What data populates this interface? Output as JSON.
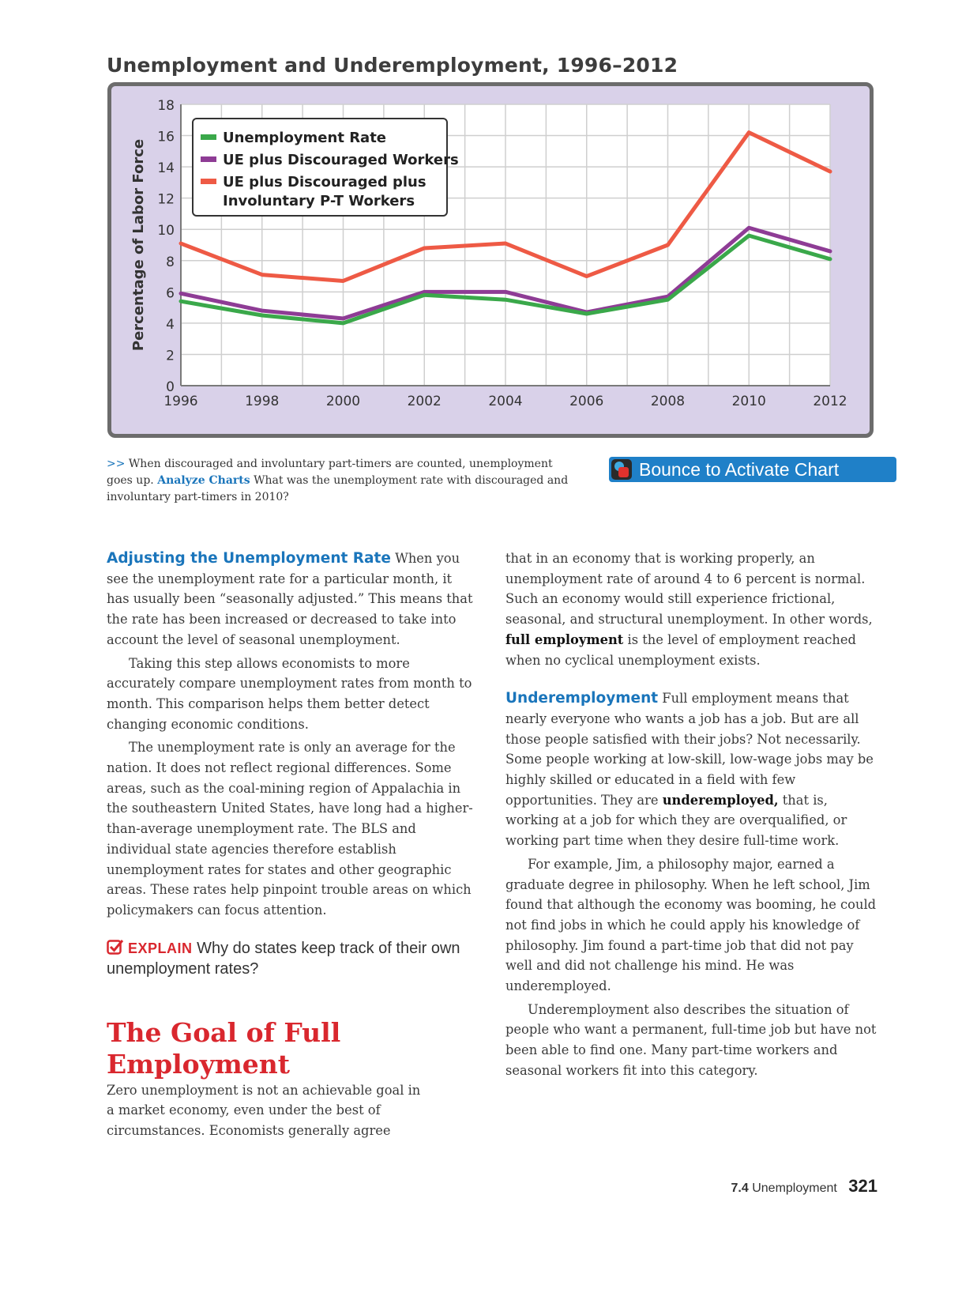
{
  "chart_data": {
    "type": "line",
    "title": "Unemployment and Underemployment, 1996–2012",
    "ylabel": "Percentage of Labor Force",
    "xlabel": "",
    "x": [
      1996,
      1998,
      2000,
      2002,
      2004,
      2006,
      2008,
      2010,
      2012
    ],
    "x_ticks": [
      "1996",
      "1998",
      "2000",
      "2002",
      "2004",
      "2006",
      "2008",
      "2010",
      "2012"
    ],
    "y_ticks": [
      "0",
      "2",
      "4",
      "6",
      "8",
      "10",
      "12",
      "14",
      "16",
      "18"
    ],
    "ylim": [
      0,
      18
    ],
    "xlim": [
      1996,
      2012
    ],
    "grid": true,
    "legend_position": "top-left",
    "series": [
      {
        "name": "Unemployment Rate",
        "color": "#3aa84a",
        "values": [
          5.4,
          4.5,
          4.0,
          5.8,
          5.5,
          4.6,
          5.5,
          9.6,
          8.1
        ]
      },
      {
        "name": "UE plus Discouraged Workers",
        "color": "#8e3c95",
        "values": [
          5.9,
          4.8,
          4.3,
          6.0,
          6.0,
          4.7,
          5.7,
          10.1,
          8.6
        ]
      },
      {
        "name": "UE plus Discouraged plus Involuntary P-T Workers",
        "legend_lines": [
          "UE plus Discouraged plus",
          "Involuntary P-T Workers"
        ],
        "color": "#ee5a45",
        "values": [
          9.1,
          7.1,
          6.7,
          8.8,
          9.1,
          7.0,
          9.0,
          16.2,
          13.7
        ]
      }
    ]
  },
  "caption": {
    "arrows": ">>",
    "text": " When discouraged and involuntary part-timers are counted, unemployment goes up. ",
    "analyze": "Analyze Charts",
    "question": "  What was the unemployment rate with discouraged and involuntary part-timers in 2010?"
  },
  "bounce_button": {
    "label": "Bounce to Activate Chart",
    "color": "#1f80c8"
  },
  "left_column": {
    "s1_head": "Adjusting the Unemployment Rate",
    "s1_text": " When you see the unemployment rate for a particular month, it has usually been “seasonally adjusted.” This means that the rate has been increased or decreased to take into account the level of seasonal unemployment.",
    "p2": "Taking this step allows economists to more accurately compare unemployment rates from month to month. This comparison helps them better detect changing economic conditions.",
    "p3": "The unemployment rate is only an average for the nation. It does not reflect regional differences. Some areas, such as the coal-mining region of Appalachia in the southeastern United States, have long had a higher-than-average unemployment rate. The BLS and individual state agencies therefore establish unemployment rates for states and other geographic areas. These rates help pinpoint trouble areas on which policymakers can focus attention.",
    "explain_label": "EXPLAIN",
    "explain_text": " Why do states keep track of their own unemployment rates?",
    "goal_head": "The Goal of Full Employment",
    "goal_text": "Zero unemployment is not an achievable goal in a market economy, even under the best of circumstances. Economists generally agree"
  },
  "right_column": {
    "p1_a": "that in an economy that is working properly, an unemployment rate of around 4 to 6 percent is normal. Such an economy would still experience frictional, seasonal, and structural unemployment. In other words, ",
    "p1_term": "full employment",
    "p1_b": " is the level of employment reached when no cyclical unemployment exists.",
    "s2_head": "Underemployment",
    "s2_a": " Full employment means that nearly everyone who wants a job has a job. But are all those people satisfied with their jobs? Not necessarily. Some people working at low-skill, low-wage jobs may be highly skilled or educated in a field with few opportunities. They are ",
    "s2_term": "underemployed,",
    "s2_b": " that is, working at a job for which they are overqualified, or working part time when they desire full-time work.",
    "p3": "For example, Jim, a philosophy major, earned a graduate degree in philosophy. When he left school, Jim found that although the economy was booming, he could not find jobs in which he could apply his knowledge of philosophy. Jim found a part-time job that did not pay well and did not challenge his mind. He was underemployed.",
    "p4": "Underemployment also describes the situation of people who want a permanent, full-time job but have not been able to find one. Many part-time workers and seasonal workers fit into this category."
  },
  "footer": {
    "section": "7.4",
    "title": "Unemployment",
    "page": "321"
  }
}
